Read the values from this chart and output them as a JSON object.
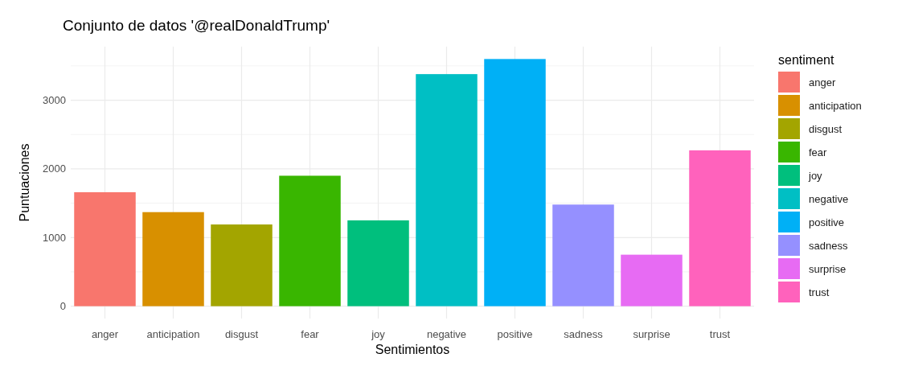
{
  "chart_data": {
    "type": "bar",
    "title": "Conjunto de datos '@realDonaldTrump'",
    "xlabel": "Sentimientos",
    "ylabel": "Puntuaciones",
    "legend_title": "sentiment",
    "legend": "right",
    "grid": true,
    "stacked": true,
    "categories": [
      "anger",
      "anticipation",
      "disgust",
      "fear",
      "joy",
      "negative",
      "positive",
      "sadness",
      "surprise",
      "trust"
    ],
    "series": [
      {
        "name": "anger",
        "color": "#F8766D",
        "values": [
          1660,
          null,
          null,
          null,
          null,
          null,
          null,
          null,
          null,
          null
        ]
      },
      {
        "name": "anticipation",
        "color": "#D89000",
        "values": [
          null,
          1370,
          null,
          null,
          null,
          null,
          null,
          null,
          null,
          null
        ]
      },
      {
        "name": "disgust",
        "color": "#A3A500",
        "values": [
          null,
          null,
          1190,
          null,
          null,
          null,
          null,
          null,
          null,
          null
        ]
      },
      {
        "name": "fear",
        "color": "#39B600",
        "values": [
          null,
          null,
          null,
          1900,
          null,
          null,
          null,
          null,
          null,
          null
        ]
      },
      {
        "name": "joy",
        "color": "#00BF7D",
        "values": [
          null,
          null,
          null,
          null,
          1250,
          null,
          null,
          null,
          null,
          null
        ]
      },
      {
        "name": "negative",
        "color": "#00BFC4",
        "values": [
          null,
          null,
          null,
          null,
          null,
          3380,
          null,
          null,
          null,
          null
        ]
      },
      {
        "name": "positive",
        "color": "#00B0F6",
        "values": [
          null,
          null,
          null,
          null,
          null,
          null,
          3600,
          null,
          null,
          null
        ]
      },
      {
        "name": "sadness",
        "color": "#9590FF",
        "values": [
          null,
          null,
          null,
          null,
          null,
          null,
          null,
          1480,
          null,
          null
        ]
      },
      {
        "name": "surprise",
        "color": "#E76BF3",
        "values": [
          null,
          null,
          null,
          null,
          null,
          null,
          null,
          null,
          750,
          null
        ]
      },
      {
        "name": "trust",
        "color": "#FF62BC",
        "values": [
          null,
          null,
          null,
          null,
          null,
          null,
          null,
          null,
          null,
          2270
        ]
      }
    ],
    "ylim": [
      -180,
      3780
    ],
    "yticks": [
      0,
      1000,
      2000,
      3000
    ]
  }
}
